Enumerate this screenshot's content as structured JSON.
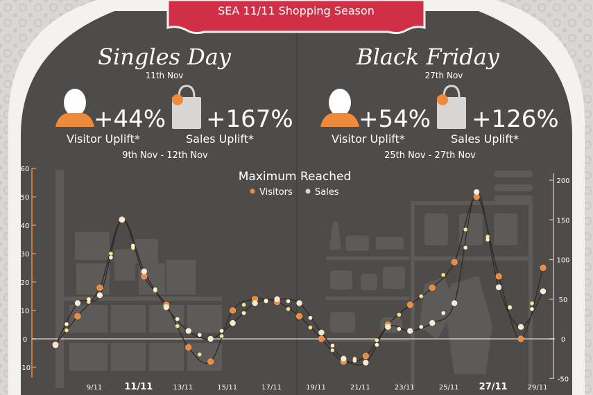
{
  "banner": {
    "title": "SEA 11/11 Shopping Season"
  },
  "panels": [
    {
      "event": "Singles Day",
      "date": "11th Nov",
      "visitor_uplift": "+44%",
      "visitor_label": "Visitor Uplift*",
      "sales_uplift": "+167%",
      "sales_label": "Sales Uplift*",
      "range": "9th Nov - 12th Nov"
    },
    {
      "event": "Black Friday",
      "date": "27th Nov",
      "visitor_uplift": "+54%",
      "visitor_label": "Visitor Uplift*",
      "sales_uplift": "+126%",
      "sales_label": "Sales Uplift*",
      "range": "25th Nov - 27th Nov"
    }
  ],
  "colors": {
    "background": "#d9d6d4",
    "board": "#4f4b48",
    "banner": "#d02f45",
    "visitors": "#f08a3b",
    "sales": "#f4ecd0",
    "axis_left": "#f08a3b"
  },
  "icons": {
    "visitor": "person-icon",
    "sales": "shopping-bag-icon"
  },
  "chart_data": {
    "type": "line",
    "title": "Maximum Reached",
    "x": [
      "8/11",
      "9/11",
      "10/11",
      "11/11",
      "12/11",
      "13/11",
      "14/11",
      "15/11",
      "16/11",
      "17/11",
      "18/11",
      "19/11",
      "20/11",
      "21/11",
      "22/11",
      "23/11",
      "24/11",
      "25/11",
      "26/11",
      "27/11",
      "28/11",
      "29/11",
      "30/11"
    ],
    "x_ticks": [
      "9/11",
      "11/11",
      "13/11",
      "15/11",
      "17/11",
      "19/11",
      "21/11",
      "23/11",
      "25/11",
      "27/11",
      "29/11"
    ],
    "x_ticks_bold": [
      "11/11",
      "27/11"
    ],
    "series": [
      {
        "name": "Visitors",
        "axis": "left",
        "values": [
          -2,
          8,
          18,
          42,
          22,
          12,
          -3,
          -8,
          10,
          14,
          13,
          8,
          0,
          -8,
          -6,
          5,
          12,
          18,
          27,
          50,
          22,
          0,
          25
        ]
      },
      {
        "name": "Sales",
        "axis": "right",
        "values": [
          -8,
          45,
          55,
          150,
          85,
          40,
          10,
          0,
          20,
          45,
          50,
          45,
          8,
          -25,
          -30,
          15,
          10,
          20,
          45,
          185,
          65,
          15,
          60
        ]
      }
    ],
    "left_axis": {
      "ticks": [
        -10,
        0,
        10,
        20,
        30,
        40,
        50,
        60
      ],
      "range": [
        -10,
        60
      ]
    },
    "right_axis": {
      "ticks": [
        -50,
        0,
        50,
        100,
        150,
        200
      ],
      "range": [
        -50,
        200
      ]
    },
    "legend_position": "top-center",
    "grid": false
  }
}
